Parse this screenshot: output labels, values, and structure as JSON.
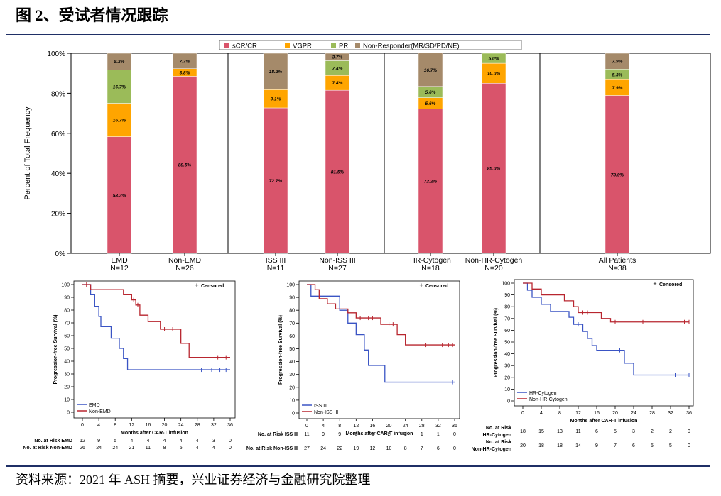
{
  "header": {
    "title": "图 2、受试者情况跟踪"
  },
  "footer": {
    "source": "资料来源：2021 年 ASH 摘要，兴业证券经济与金融研究院整理"
  },
  "colors": {
    "scr_cr": "#d9546b",
    "vgpr": "#ffa500",
    "pr": "#9bbb59",
    "non_responder": "#a58a6a",
    "km_blue": "#3a54c4",
    "km_red": "#b8262f",
    "rule": "#1f2f66"
  },
  "chart_data": [
    {
      "type": "bar",
      "stacked": true,
      "ylabel": "Percent of Total Frequency",
      "ylim": [
        0,
        100
      ],
      "yticks": [
        "0%",
        "20%",
        "40%",
        "60%",
        "80%",
        "100%"
      ],
      "legend": {
        "placement": "top",
        "entries": [
          "sCR/CR",
          "VGPR",
          "PR",
          "Non-Responder(MR/SD/PD/NE)"
        ]
      },
      "groups": [
        {
          "name": "EMD",
          "n": "N=12",
          "values": [
            58.3,
            16.7,
            16.7,
            8.3
          ],
          "labels": [
            "58.3%",
            "16.7%",
            "16.7%",
            "8.3%"
          ]
        },
        {
          "name": "Non-EMD",
          "n": "N=26",
          "values": [
            88.5,
            3.8,
            0,
            7.7
          ],
          "labels": [
            "88.5%",
            "3.8%",
            "",
            "7.7%"
          ]
        },
        {
          "name": "ISS III",
          "n": "N=11",
          "values": [
            72.7,
            9.1,
            0,
            18.2
          ],
          "labels": [
            "72.7%",
            "9.1%",
            "",
            "18.2%"
          ]
        },
        {
          "name": "Non-ISS III",
          "n": "N=27",
          "values": [
            81.5,
            7.4,
            7.4,
            3.7
          ],
          "labels": [
            "81.5%",
            "7.4%",
            "7.4%",
            "3.7%"
          ]
        },
        {
          "name": "HR-Cytogen",
          "n": "N=18",
          "values": [
            72.2,
            5.6,
            5.6,
            16.7
          ],
          "labels": [
            "72.2%",
            "5.6%",
            "5.6%",
            "16.7%"
          ]
        },
        {
          "name": "Non-HR-Cytogen",
          "n": "N=20",
          "values": [
            85.0,
            10.0,
            5.0,
            0
          ],
          "labels": [
            "85.0%",
            "10.0%",
            "5.0%",
            ""
          ]
        },
        {
          "name": "All Patients",
          "n": "N=38",
          "values": [
            78.9,
            7.9,
            5.3,
            7.9
          ],
          "labels": [
            "78.9%",
            "7.9%",
            "5.3%",
            "7.9%"
          ]
        }
      ]
    },
    {
      "type": "line",
      "ylabel": "Progression-free Survival (%)",
      "xlabel": "Months after CAR-T infusion",
      "censored_label": "Censored",
      "xlim": [
        0,
        36
      ],
      "ylim": [
        0,
        100
      ],
      "xticks": [
        0,
        4,
        8,
        12,
        16,
        20,
        24,
        28,
        32,
        36
      ],
      "yticks": [
        0,
        10,
        20,
        30,
        40,
        50,
        60,
        70,
        80,
        90,
        100
      ],
      "series": [
        {
          "name": "EMD",
          "color_key": "km_blue",
          "steps": [
            [
              0,
              100
            ],
            [
              2,
              92
            ],
            [
              3,
              83
            ],
            [
              4,
              75
            ],
            [
              4.5,
              67
            ],
            [
              7,
              58
            ],
            [
              9,
              50
            ],
            [
              10,
              42
            ],
            [
              11,
              33.3
            ],
            [
              36,
              33.3
            ]
          ],
          "censored": [
            [
              29,
              33.3
            ],
            [
              31.5,
              33.3
            ],
            [
              33.5,
              33.3
            ],
            [
              35,
              33.3
            ]
          ],
          "at_risk_label": "No. at Risk EMD",
          "at_risk": [
            12,
            9,
            5,
            4,
            4,
            4,
            4,
            4,
            3,
            0
          ]
        },
        {
          "name": "Non-EMD",
          "color_key": "km_red",
          "steps": [
            [
              0,
              100
            ],
            [
              2,
              96
            ],
            [
              10,
              92
            ],
            [
              12,
              88
            ],
            [
              13,
              84
            ],
            [
              14,
              76
            ],
            [
              16,
              71
            ],
            [
              19,
              65
            ],
            [
              24,
              54
            ],
            [
              26,
              43
            ],
            [
              36,
              43
            ]
          ],
          "censored": [
            [
              1,
              100
            ],
            [
              12.5,
              88
            ],
            [
              13.5,
              84
            ],
            [
              20,
              65
            ],
            [
              22,
              65
            ],
            [
              33,
              43
            ],
            [
              35,
              43
            ]
          ],
          "at_risk_label": "No. at Risk Non-EMD",
          "at_risk": [
            26,
            24,
            24,
            21,
            11,
            8,
            5,
            4,
            4,
            0
          ]
        }
      ]
    },
    {
      "type": "line",
      "ylabel": "Progression-free Survival (%)",
      "xlabel": "Months after CAR-T infusion",
      "censored_label": "Censored",
      "xlim": [
        0,
        36
      ],
      "ylim": [
        0,
        100
      ],
      "xticks": [
        0,
        4,
        8,
        12,
        16,
        20,
        24,
        28,
        32,
        36
      ],
      "yticks": [
        0,
        10,
        20,
        30,
        40,
        50,
        60,
        70,
        80,
        90,
        100
      ],
      "series": [
        {
          "name": "ISS III",
          "color_key": "km_blue",
          "steps": [
            [
              0,
              100
            ],
            [
              1,
              91
            ],
            [
              8,
              80
            ],
            [
              10,
              70
            ],
            [
              12,
              61
            ],
            [
              14,
              49
            ],
            [
              15,
              37
            ],
            [
              19,
              24
            ],
            [
              36,
              24
            ]
          ],
          "censored": [
            [
              35.5,
              24
            ]
          ],
          "at_risk_label": "No. at Risk ISS III",
          "at_risk": [
            11,
            9,
            9,
            6,
            3,
            2,
            1,
            1,
            1,
            0
          ]
        },
        {
          "name": "Non-ISS III",
          "color_key": "km_red",
          "steps": [
            [
              0,
              100
            ],
            [
              2,
              96
            ],
            [
              3,
              89
            ],
            [
              5,
              85
            ],
            [
              7,
              81
            ],
            [
              10,
              78
            ],
            [
              12,
              74
            ],
            [
              18,
              69
            ],
            [
              22,
              61
            ],
            [
              24,
              53
            ],
            [
              36,
              53
            ]
          ],
          "censored": [
            [
              13,
              74
            ],
            [
              15,
              74
            ],
            [
              16,
              74
            ],
            [
              20,
              69
            ],
            [
              21,
              69
            ],
            [
              29,
              53
            ],
            [
              33,
              53
            ],
            [
              34.5,
              53
            ],
            [
              35.5,
              53
            ]
          ],
          "at_risk_label": "No. at Risk Non-ISS III",
          "at_risk": [
            27,
            24,
            22,
            19,
            12,
            10,
            8,
            7,
            6,
            0
          ]
        }
      ]
    },
    {
      "type": "line",
      "ylabel": "Progression-free Survival (%)",
      "xlabel": "Months after CAR-T infusion",
      "censored_label": "Censored",
      "xlim": [
        0,
        36
      ],
      "ylim": [
        0,
        100
      ],
      "xticks": [
        0,
        4,
        8,
        12,
        16,
        20,
        24,
        28,
        32,
        36
      ],
      "yticks": [
        0,
        10,
        20,
        30,
        40,
        50,
        60,
        70,
        80,
        90,
        100
      ],
      "series": [
        {
          "name": "HR-Cytogen",
          "color_key": "km_blue",
          "steps": [
            [
              0,
              100
            ],
            [
              1,
              94
            ],
            [
              2,
              88
            ],
            [
              4,
              82
            ],
            [
              6,
              76
            ],
            [
              10,
              71
            ],
            [
              11,
              65
            ],
            [
              13,
              59
            ],
            [
              14,
              53
            ],
            [
              15,
              47
            ],
            [
              16,
              43
            ],
            [
              22,
              32
            ],
            [
              24,
              22
            ],
            [
              36,
              22
            ]
          ],
          "censored": [
            [
              12,
              65
            ],
            [
              21,
              43
            ],
            [
              33,
              22
            ],
            [
              36,
              22
            ]
          ],
          "at_risk_label": "No. at Risk HR-Cytogen",
          "at_risk": [
            18,
            15,
            13,
            11,
            6,
            5,
            3,
            2,
            2,
            0
          ]
        },
        {
          "name": "Non-HR-Cytogen",
          "color_key": "km_red",
          "steps": [
            [
              0,
              100
            ],
            [
              2,
              95
            ],
            [
              4,
              90
            ],
            [
              9,
              85
            ],
            [
              11,
              80
            ],
            [
              12,
              75
            ],
            [
              17,
              70
            ],
            [
              19,
              67
            ],
            [
              36,
              67
            ]
          ],
          "censored": [
            [
              13,
              75
            ],
            [
              14,
              75
            ],
            [
              15,
              75
            ],
            [
              20,
              67
            ],
            [
              26,
              67
            ],
            [
              35,
              67
            ],
            [
              36,
              67
            ]
          ],
          "at_risk_label": "No. at Risk Non-HR-Cytogen",
          "at_risk": [
            20,
            18,
            18,
            14,
            9,
            7,
            6,
            5,
            5,
            0
          ]
        }
      ]
    }
  ]
}
